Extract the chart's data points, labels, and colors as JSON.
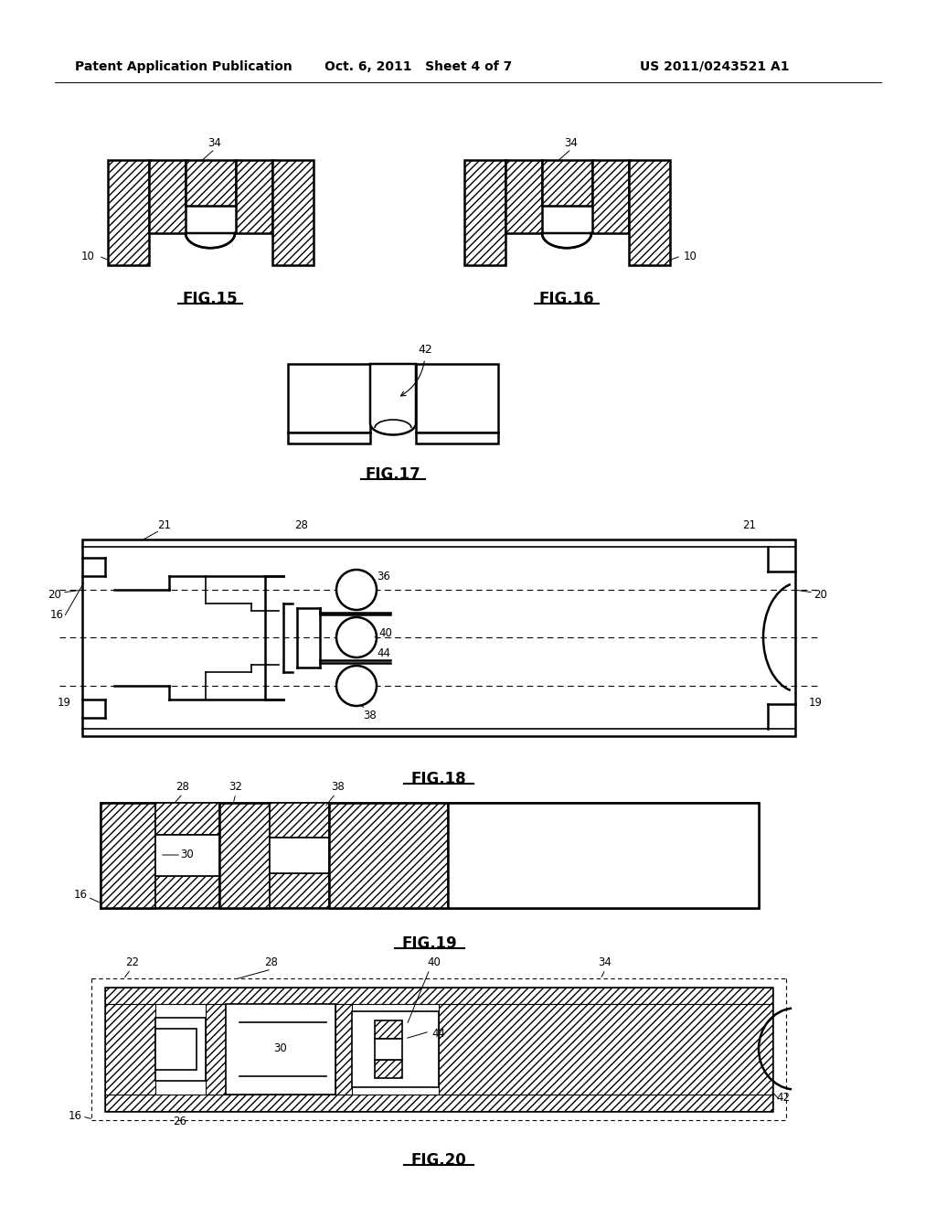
{
  "header_left": "Patent Application Publication",
  "header_mid": "Oct. 6, 2011   Sheet 4 of 7",
  "header_right": "US 2011/0243521 A1",
  "background": "#ffffff",
  "line_color": "#000000",
  "fig_labels": {
    "fig15": "FIG.15",
    "fig16": "FIG.16",
    "fig17": "FIG.17",
    "fig18": "FIG.18",
    "fig19": "FIG.19",
    "fig20": "FIG.20"
  }
}
